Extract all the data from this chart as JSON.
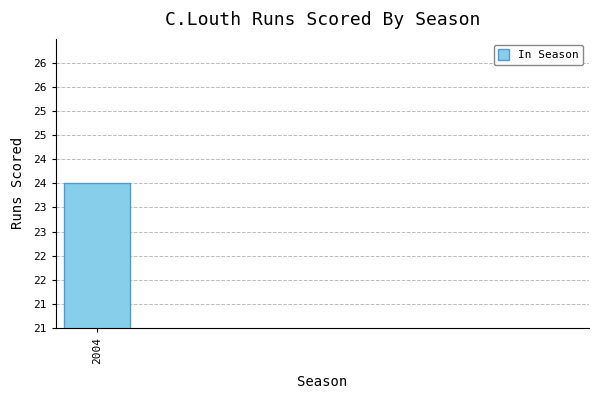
{
  "title": "C.Louth Runs Scored By Season",
  "xlabel": "Season",
  "ylabel": "Runs Scored",
  "seasons": [
    2004
  ],
  "values": [
    24
  ],
  "bar_color": "#87CEEB",
  "bar_edgecolor": "#5599CC",
  "ylim": [
    21,
    27
  ],
  "xlim": [
    2003.5,
    2010
  ],
  "bar_width": 0.8,
  "legend_label": "In Season",
  "background_color": "#ffffff",
  "grid_color": "#bbbbbb",
  "font_family": "monospace",
  "title_fontsize": 13,
  "label_fontsize": 10,
  "tick_fontsize": 8
}
